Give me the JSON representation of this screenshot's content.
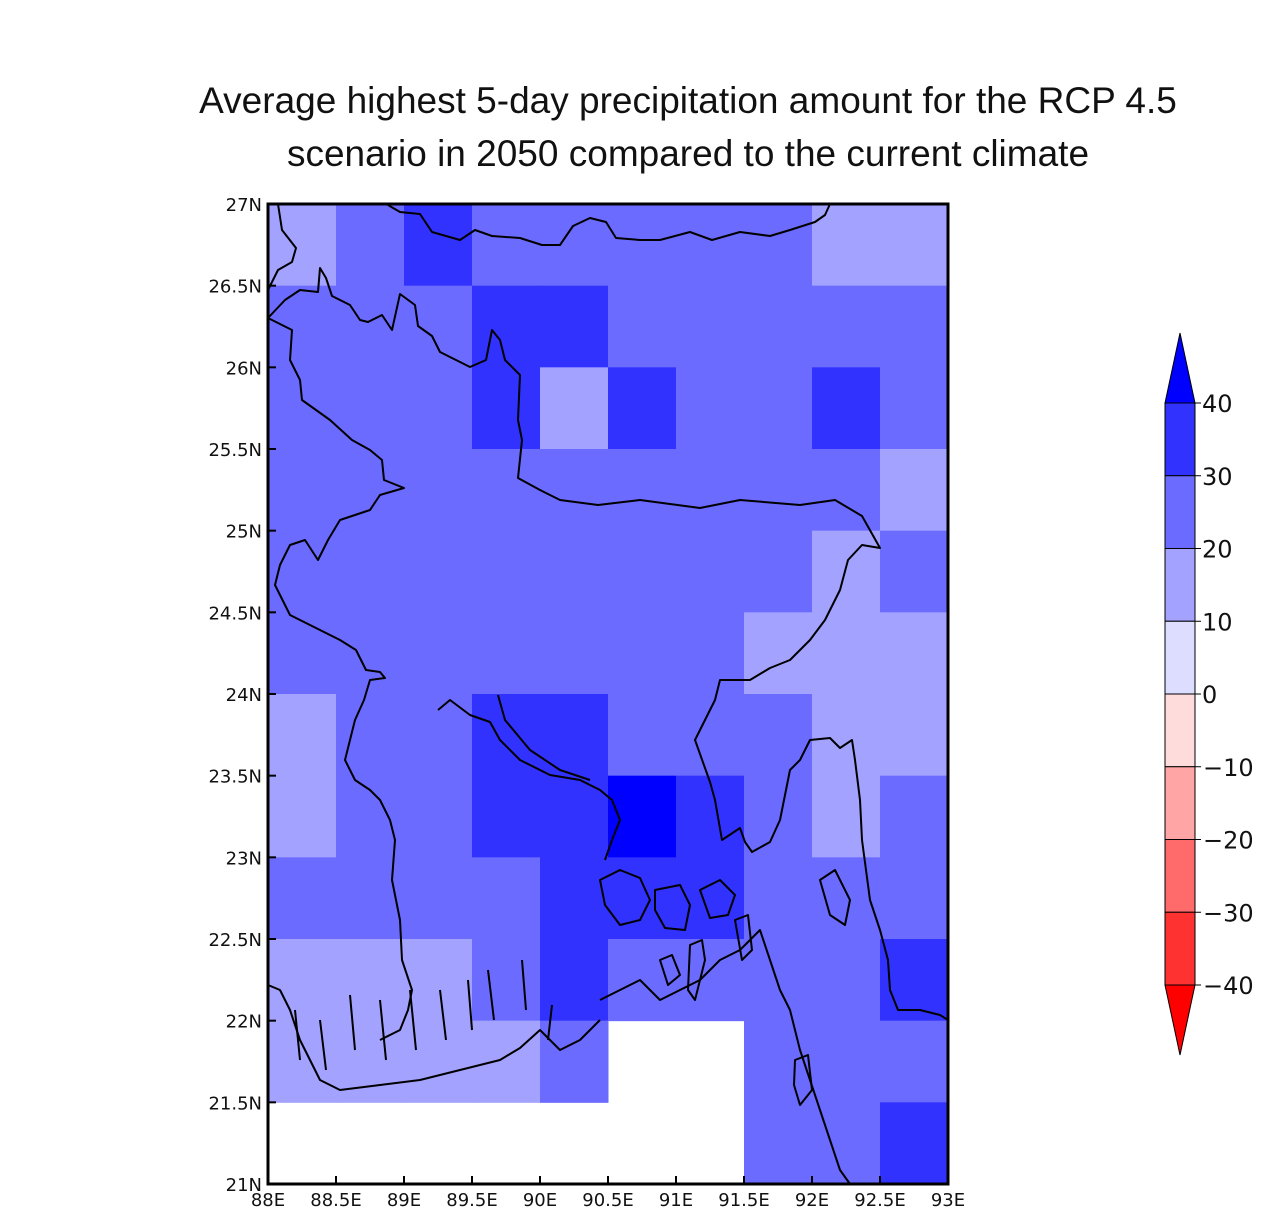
{
  "title": {
    "line1": "Average highest 5-day precipitation amount for the RCP 4.5",
    "line2": "scenario in 2050 compared to the current climate"
  },
  "axes": {
    "lon_ticks": [
      "88E",
      "88.5E",
      "89E",
      "89.5E",
      "90E",
      "90.5E",
      "91E",
      "91.5E",
      "92E",
      "92.5E",
      "93E"
    ],
    "lat_ticks": [
      "21N",
      "21.5N",
      "22N",
      "22.5N",
      "23N",
      "23.5N",
      "24N",
      "24.5N",
      "25N",
      "25.5N",
      "26N",
      "26.5N",
      "27N"
    ],
    "lon_range": [
      88,
      93
    ],
    "lat_range": [
      21,
      27
    ],
    "cell_size_deg": 0.5
  },
  "colorbar": {
    "labels": [
      "40",
      "30",
      "20",
      "10",
      "0",
      "−10",
      "−20",
      "−30",
      "−40"
    ],
    "classes": [
      {
        "range": ">40",
        "color": "#0000ff"
      },
      {
        "range": "30-40",
        "color": "#3232ff"
      },
      {
        "range": "20-30",
        "color": "#6b6bff"
      },
      {
        "range": "10-20",
        "color": "#a3a3ff"
      },
      {
        "range": "0-10",
        "color": "#ddddff"
      },
      {
        "range": "-10-0",
        "color": "#ffdcdc"
      },
      {
        "range": "-20--10",
        "color": "#ffa5a5"
      },
      {
        "range": "-30--20",
        "color": "#ff6a6a"
      },
      {
        "range": "-40--30",
        "color": "#ff3232"
      },
      {
        "range": "<-40",
        "color": "#ff0000"
      }
    ]
  },
  "grid_classes_top_to_bottom": [
    "2 3 4 3 3 3 3 3 2 2",
    "3 3 3 4 4 3 3 3 3 3",
    "3 3 3 4 2 4 3 3 4 3",
    "3 3 3 3 3 3 3 3 3 2",
    "3 3 3 3 3 3 3 3 2 3",
    "3 3 3 3 3 3 3 2 2 2",
    "2 3 3 4 4 3 3 3 2 2",
    "2 3 3 4 4 5 4 3 2 3",
    "3 3 3 3 4 4 4 3 3 3",
    "2 2 2 3 4 3 3 3 3 4",
    "2 2 2 2 3 - - 3 3 3",
    "- - - - - - - 3 3 4"
  ]
}
